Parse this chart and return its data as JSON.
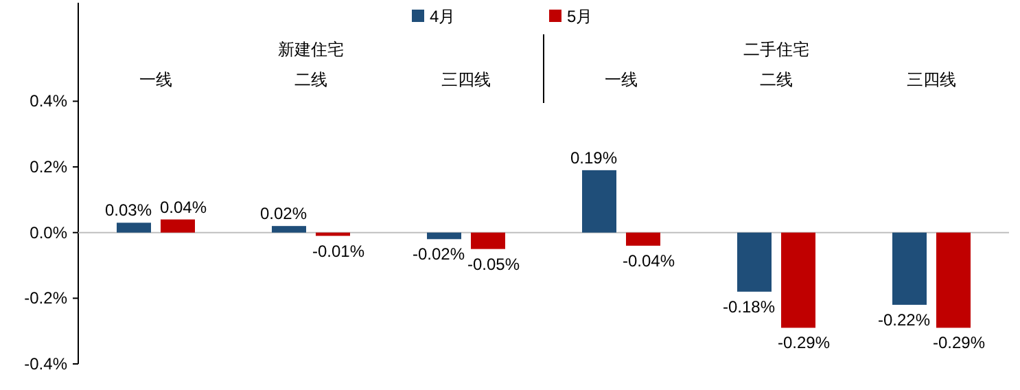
{
  "chart_data": {
    "type": "bar",
    "categories": [
      "一线",
      "二线",
      "三四线",
      "一线",
      "二线",
      "三四线"
    ],
    "annotations": [
      "新建住宅",
      "二手住宅"
    ],
    "series": [
      {
        "name": "4月",
        "color": "#1f4e79",
        "values": [
          0.03,
          0.02,
          -0.02,
          0.19,
          -0.18,
          -0.22
        ],
        "value_labels": [
          "0.03%",
          "0.02%",
          "-0.02%",
          "0.19%",
          "-0.18%",
          "-0.22%"
        ]
      },
      {
        "name": "5月",
        "color": "#c00000",
        "values": [
          0.04,
          -0.01,
          -0.05,
          -0.04,
          -0.29,
          -0.29
        ],
        "value_labels": [
          "0.04%",
          "-0.01%",
          "-0.05%",
          "-0.04%",
          "-0.29%",
          "-0.29%"
        ]
      }
    ],
    "ylim": [
      -0.4,
      0.7
    ],
    "yticks": [
      {
        "value": -0.4,
        "label": "-0.4%"
      },
      {
        "value": -0.2,
        "label": "-0.2%"
      },
      {
        "value": 0,
        "label": "0.0%"
      },
      {
        "value": 0.2,
        "label": "0.2%"
      },
      {
        "value": 0.4,
        "label": "0.4%"
      }
    ],
    "legend": "top"
  }
}
